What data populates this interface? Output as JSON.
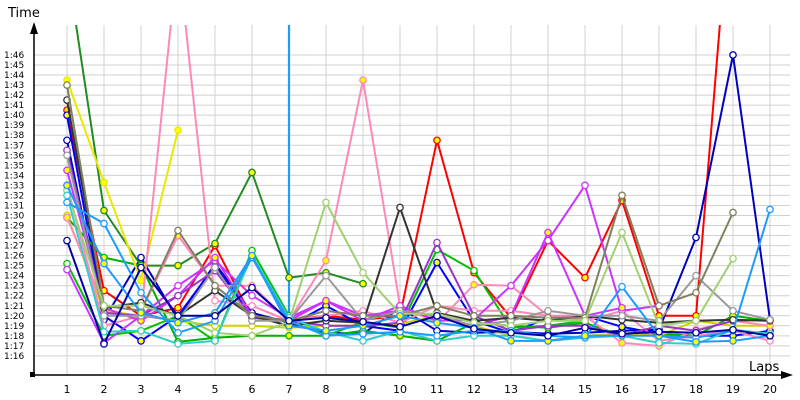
{
  "chart_data": {
    "type": "line",
    "title": "",
    "xlabel": "Laps",
    "ylabel": "Time",
    "x": [
      1,
      2,
      3,
      4,
      5,
      6,
      7,
      8,
      9,
      10,
      11,
      12,
      13,
      14,
      15,
      16,
      17,
      18,
      19,
      20
    ],
    "yticks": [
      "1:16",
      "1:17",
      "1:18",
      "1:19",
      "1:20",
      "1:21",
      "1:22",
      "1:23",
      "1:24",
      "1:25",
      "1:26",
      "1:27",
      "1:28",
      "1:29",
      "1:30",
      "1:31",
      "1:32",
      "1:33",
      "1:34",
      "1:35",
      "1:36",
      "1:37",
      "1:38",
      "1:39",
      "1:40",
      "1:41",
      "1:42",
      "1:43",
      "1:44",
      "1:45",
      "1:46"
    ],
    "ylim_seconds": [
      73,
      109
    ],
    "grid": true,
    "legend": "none",
    "units": "lap time in seconds (e.g. 80 = 1:20)",
    "series": [
      {
        "name": "red",
        "color": "#ff0000",
        "marker_fill": "#ffff00",
        "values": [
          100.5,
          82.5,
          80,
          80.8,
          87,
          79.8,
          79.6,
          80,
          79.6,
          80,
          97.5,
          84.3,
          79.8,
          87.5,
          83.8,
          91.5,
          80,
          80,
          125,
          null
        ]
      },
      {
        "name": "blue-dark",
        "color": "#0000c0",
        "marker_fill": "#ffffff",
        "values": [
          97.5,
          79.6,
          85.8,
          79.6,
          85.2,
          80.3,
          79.3,
          78.3,
          78.2,
          80.8,
          78.5,
          78.3,
          78.4,
          78.2,
          78.3,
          78.5,
          78.6,
          87.8,
          106,
          79.6
        ]
      },
      {
        "name": "blue",
        "color": "#0000ff",
        "marker_fill": "#ffff00",
        "values": [
          100,
          80,
          77.5,
          80,
          85,
          80,
          79,
          81,
          79,
          78.5,
          85.3,
          79.5,
          78.3,
          79.8,
          80,
          78.9,
          78.2,
          78,
          78,
          78.5
        ]
      },
      {
        "name": "green-dark",
        "color": "#228b22",
        "marker_fill": "#ffff00",
        "values": [
          115,
          90.5,
          85,
          85,
          87.2,
          94.3,
          83.8,
          84.3,
          83.2,
          null,
          null,
          null,
          null,
          null,
          null,
          null,
          null,
          null,
          null,
          null
        ]
      },
      {
        "name": "green",
        "color": "#00c000",
        "marker_fill": "#ffffff",
        "values": [
          85.2,
          78,
          78.5,
          80,
          77.5,
          86.5,
          80,
          78,
          79.4,
          78.8,
          86.6,
          84.5,
          78.8,
          79,
          79.5,
          null,
          null,
          null,
          null,
          null
        ]
      },
      {
        "name": "green-2",
        "color": "#00b000",
        "marker_fill": "#ffff00",
        "values": [
          89.8,
          85.8,
          85,
          77.4,
          77.8,
          78,
          78,
          78,
          78.5,
          78,
          77.5,
          79.3,
          79,
          78.8,
          79.3,
          78,
          78.2,
          78,
          80,
          79.5
        ]
      },
      {
        "name": "yellow",
        "color": "#e8e800",
        "marker_fill": "#ffff00",
        "values": [
          103.5,
          93.3,
          83.5,
          98.5,
          null,
          null,
          null,
          null,
          null,
          null,
          null,
          null,
          null,
          null,
          null,
          null,
          null,
          null,
          null,
          null
        ]
      },
      {
        "name": "yellow-2",
        "color": "#d0d000",
        "marker_fill": "#ffffff",
        "values": [
          90,
          80.5,
          80,
          79.5,
          79,
          79,
          78.8,
          79,
          79,
          79.2,
          80,
          79,
          78,
          77.5,
          78,
          78.2,
          78,
          79.5,
          79,
          79
        ]
      },
      {
        "name": "pink",
        "color": "#ff88bb",
        "marker_fill": "#ffff00",
        "values": [
          89.8,
          81,
          80.5,
          88,
          83,
          83,
          79.5,
          85.5,
          103.5,
          81,
          79.3,
          83.1,
          83,
          80,
          80,
          77.3,
          77,
          78.6,
          79.5,
          79
        ]
      },
      {
        "name": "pink-2",
        "color": "#ff88bb",
        "marker_fill": "#ffffff",
        "values": [
          93,
          79,
          80,
          116,
          81.5,
          81,
          79.5,
          80,
          80.5,
          79.3,
          81,
          80.5,
          80.5,
          80,
          79.5,
          80.5,
          77.5,
          78,
          78.5,
          77.5
        ]
      },
      {
        "name": "magenta",
        "color": "#cc33ff",
        "marker_fill": "#ffffff",
        "values": [
          84.6,
          77.3,
          80,
          83,
          85.5,
          82,
          79.8,
          81.5,
          79.5,
          81,
          79.5,
          79.6,
          83,
          87.5,
          93,
          80.5,
          81,
          null,
          null,
          null
        ]
      },
      {
        "name": "magenta-2",
        "color": "#cc33ff",
        "marker_fill": "#ffff00",
        "values": [
          94.5,
          80.8,
          79.5,
          82,
          85.8,
          80,
          79.5,
          81.5,
          80,
          80.5,
          80,
          79,
          80,
          88.3,
          80,
          80.8,
          null,
          null,
          null,
          null
        ]
      },
      {
        "name": "purple",
        "color": "#9933cc",
        "marker_fill": "#ffffff",
        "values": [
          96.5,
          80.3,
          80,
          82,
          84.5,
          79.8,
          79.5,
          79,
          79,
          79.3,
          87.3,
          80,
          78.5,
          79,
          79,
          78,
          79,
          78.5,
          79.5,
          79.6
        ]
      },
      {
        "name": "black",
        "color": "#333333",
        "marker_fill": "#ffffff",
        "values": [
          101.5,
          80.8,
          81.3,
          80,
          82.5,
          80,
          79,
          79.5,
          79.3,
          90.8,
          80.3,
          79.5,
          79.8,
          79.5,
          80,
          79.6,
          79.3,
          79.5,
          79.6,
          79.5
        ]
      },
      {
        "name": "gray",
        "color": "#999999",
        "marker_fill": "#ffffff",
        "values": [
          96,
          80,
          80,
          79.5,
          84.8,
          79.5,
          79.5,
          84,
          79.5,
          80.5,
          80,
          79,
          79.5,
          80.5,
          80,
          80,
          79.5,
          84,
          80.5,
          79.6
        ]
      },
      {
        "name": "olive",
        "color": "#808060",
        "marker_fill": "#ffffff",
        "values": [
          103,
          81,
          80.5,
          88.5,
          83,
          80,
          79.5,
          80.5,
          80,
          80,
          81,
          80,
          80,
          79.8,
          79.8,
          92,
          81,
          82.3,
          90.3,
          null
        ]
      },
      {
        "name": "lime-pale",
        "color": "#a0d070",
        "marker_fill": "#ffffff",
        "values": [
          92.5,
          81,
          81,
          80,
          78.3,
          78,
          79.4,
          91.3,
          84.3,
          80.2,
          80.2,
          79.3,
          79,
          79.5,
          79.5,
          88.3,
          79,
          79.5,
          85.7,
          null
        ]
      },
      {
        "name": "cyan",
        "color": "#33cccc",
        "marker_fill": "#ffffff",
        "values": [
          92,
          78.4,
          78.5,
          77.2,
          77.5,
          86,
          79.8,
          78.4,
          77.5,
          78.5,
          77.5,
          78,
          78,
          77.5,
          77.8,
          78,
          77.3,
          77.2,
          78.6,
          78.2
        ]
      },
      {
        "name": "sky-blue",
        "color": "#1e9bff",
        "marker_fill": "#ffffff",
        "values": [
          91.3,
          89.2,
          82.3,
          78.3,
          79.5,
          85.8,
          79.5,
          78,
          78.2,
          78.4,
          78,
          78.5,
          78.5,
          78,
          77.8,
          82.9,
          78,
          77.8,
          78.5,
          90.6
        ]
      },
      {
        "name": "sky-blue-2",
        "color": "#1e9bff",
        "marker_fill": "#ffff00",
        "values": [
          93,
          85.2,
          80.3,
          79.3,
          80.3,
          86,
          79,
          78.5,
          79,
          80,
          79.3,
          78.8,
          77.5,
          77.5,
          78,
          78,
          78,
          77.4,
          77.5,
          78
        ]
      },
      {
        "name": "navy",
        "color": "#0000a0",
        "marker_fill": "#ffffff",
        "values": [
          87.5,
          77.2,
          84.8,
          80,
          80,
          82.8,
          79.5,
          79.8,
          79.4,
          78.9,
          80,
          78.7,
          78.3,
          78,
          78.8,
          78.2,
          78.4,
          78.3,
          78.6,
          78
        ]
      }
    ],
    "annotations": [
      {
        "type": "vertical-line",
        "color": "#1e9bff",
        "x": 7,
        "note": "sky-blue line spike to top of chart at lap 7"
      }
    ]
  },
  "axes": {
    "y_title": "Time",
    "x_title": "Laps",
    "y_ticks": [
      "1:16",
      "1:17",
      "1:18",
      "1:19",
      "1:20",
      "1:21",
      "1:22",
      "1:23",
      "1:24",
      "1:25",
      "1:26",
      "1:27",
      "1:28",
      "1:29",
      "1:30",
      "1:31",
      "1:32",
      "1:33",
      "1:34",
      "1:35",
      "1:36",
      "1:37",
      "1:38",
      "1:39",
      "1:40",
      "1:41",
      "1:42",
      "1:43",
      "1:44",
      "1:45",
      "1:46"
    ],
    "x_ticks": [
      "1",
      "2",
      "3",
      "4",
      "5",
      "6",
      "7",
      "8",
      "9",
      "10",
      "11",
      "12",
      "13",
      "14",
      "15",
      "16",
      "17",
      "18",
      "19",
      "20"
    ]
  }
}
